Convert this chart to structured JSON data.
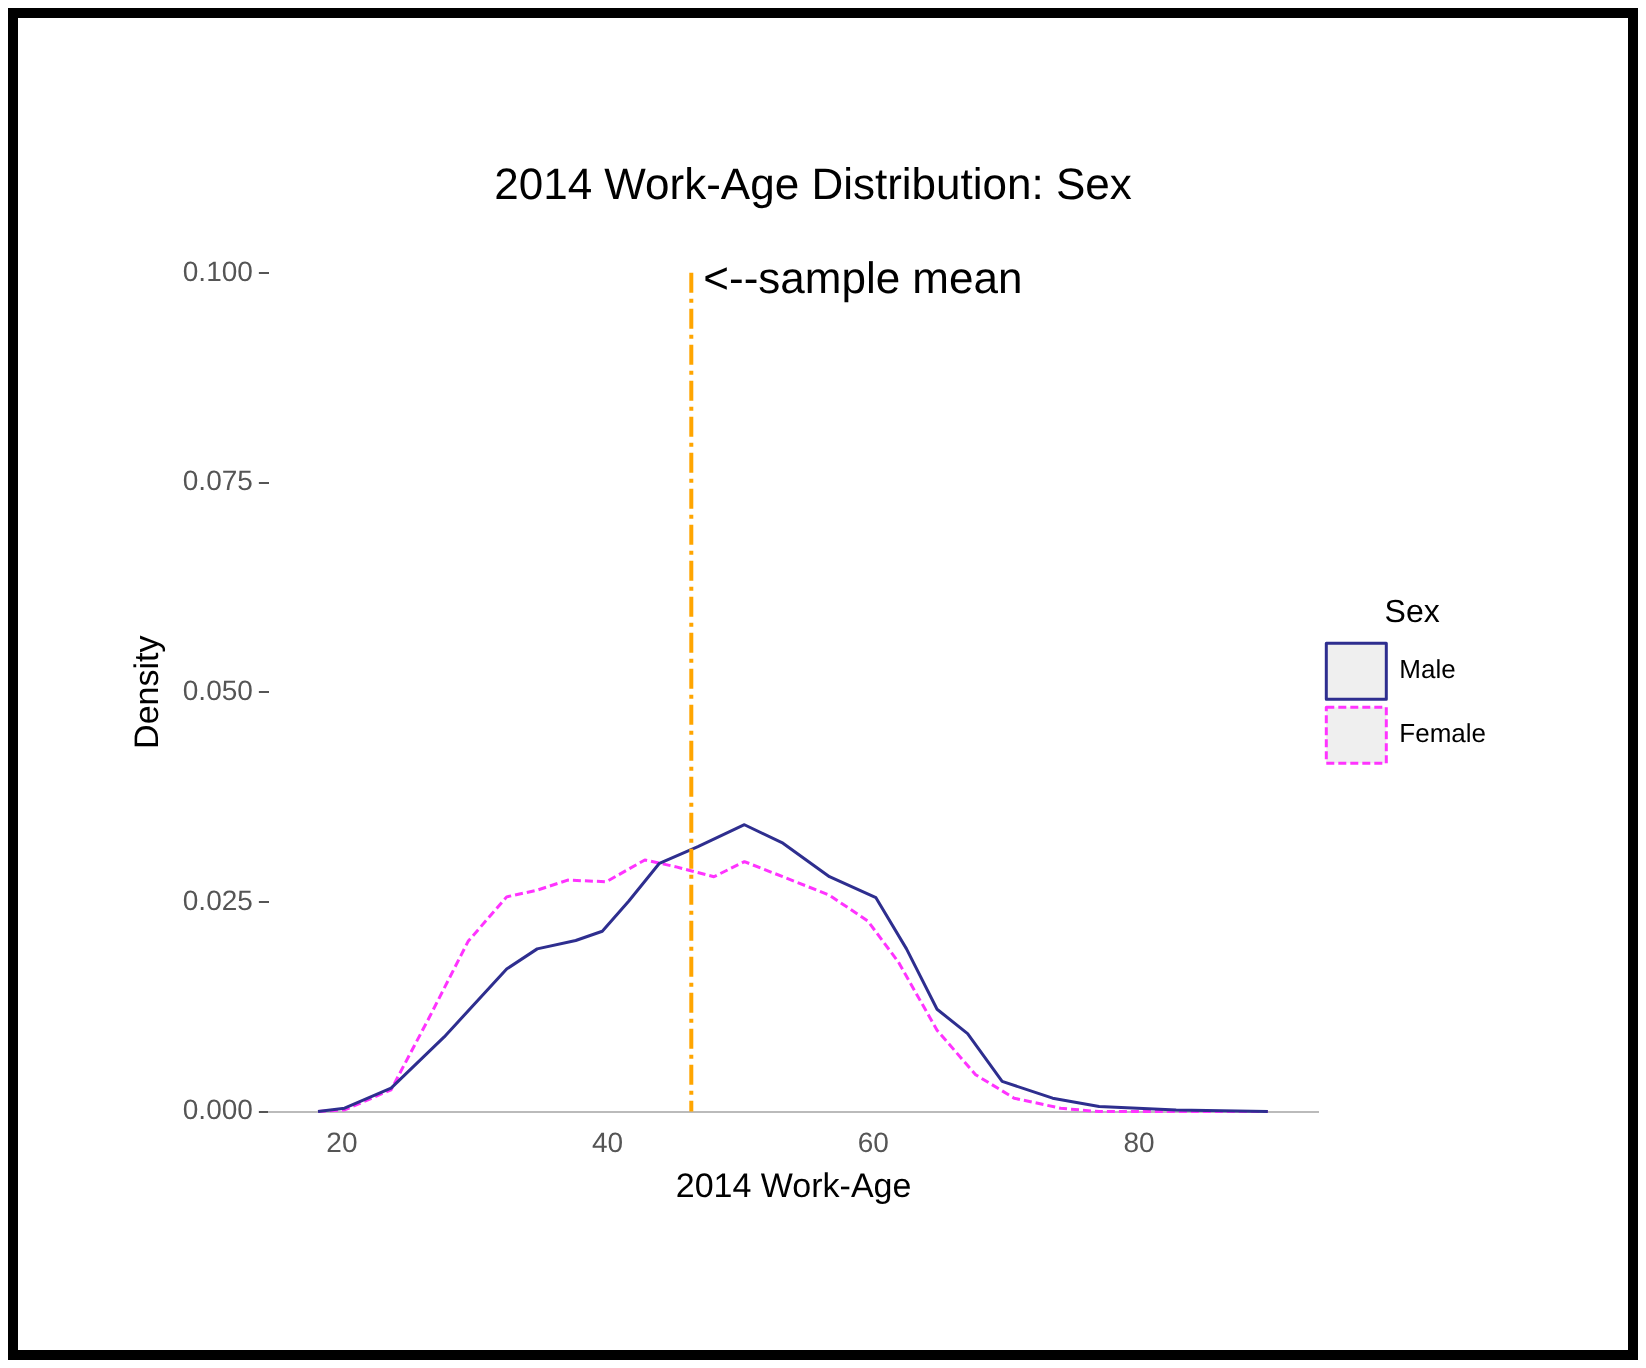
{
  "chart_data": {
    "type": "line",
    "title": "2014 Work-Age Distribution: Sex",
    "xlabel": "2014 Work-Age",
    "ylabel": "Density",
    "legend_title": "Sex",
    "legend": "right",
    "grid": false,
    "marker": "none",
    "xlim": [
      14.5,
      93.5
    ],
    "xticks": [
      20,
      40,
      60,
      80
    ],
    "ylim": [
      0,
      0.1
    ],
    "yticks": [
      {
        "value": 0,
        "label": "0.000"
      },
      {
        "value": 0.025,
        "label": "0.025"
      },
      {
        "value": 0.05,
        "label": "0.050"
      },
      {
        "value": 0.075,
        "label": "0.075"
      },
      {
        "value": 0.1,
        "label": "0.100"
      }
    ],
    "series": [
      {
        "name": "Male",
        "color": "#2e2e8f",
        "line_style": "solid",
        "x": [
          18.2,
          20.2,
          23.7,
          27.7,
          32.4,
          34.7,
          37.6,
          39.6,
          41.6,
          43.9,
          46.8,
          50.3,
          53.2,
          56.7,
          60.2,
          62.5,
          64.8,
          67.1,
          69.7,
          73.5,
          77.0,
          82.8,
          89.7
        ],
        "values": [
          0,
          0.0004,
          0.0028,
          0.0089,
          0.017,
          0.0194,
          0.0204,
          0.0215,
          0.0251,
          0.0296,
          0.0316,
          0.0342,
          0.032,
          0.028,
          0.0255,
          0.0194,
          0.0122,
          0.0093,
          0.0036,
          0.0016,
          0.0006,
          0.0002,
          0
        ]
      },
      {
        "name": "Female",
        "color": "#ff33ff",
        "line_style": "dashed",
        "x": [
          18.2,
          20.2,
          23.7,
          26.6,
          29.5,
          32.4,
          34.7,
          37.0,
          39.9,
          42.8,
          45.1,
          48.0,
          50.3,
          53.2,
          56.7,
          59.6,
          61.9,
          64.8,
          67.7,
          70.6,
          74.1,
          77.0,
          89.7
        ],
        "values": [
          0,
          0.0002,
          0.0026,
          0.0113,
          0.0203,
          0.0256,
          0.0264,
          0.0276,
          0.0274,
          0.03,
          0.0292,
          0.028,
          0.0298,
          0.028,
          0.0258,
          0.0227,
          0.0178,
          0.0097,
          0.0044,
          0.0016,
          0.0004,
          0,
          0
        ]
      }
    ],
    "ref_lines": [
      {
        "axis": "x",
        "value": 46.3,
        "color": "#ffa500",
        "line_style": "dashed",
        "label": "<--sample mean"
      }
    ]
  }
}
